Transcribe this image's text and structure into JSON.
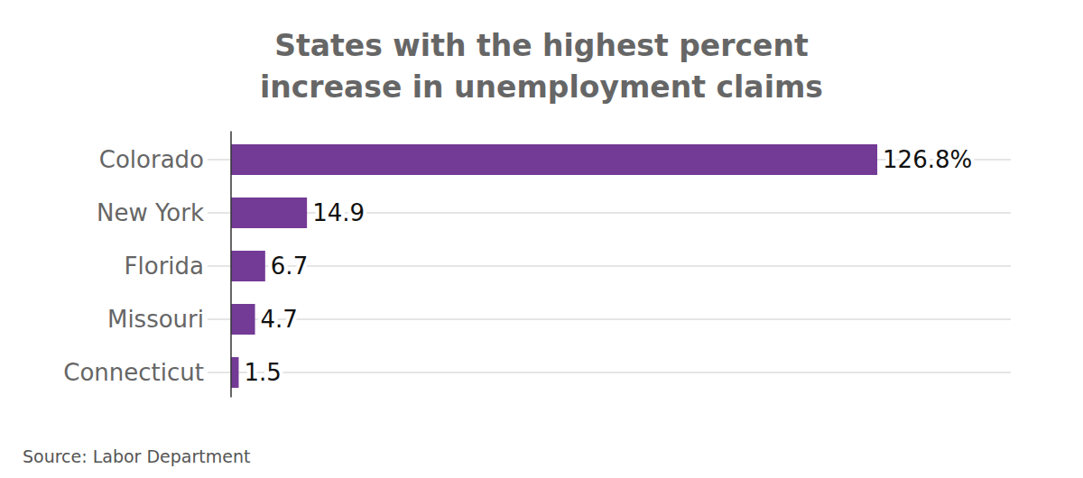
{
  "chart_data": {
    "type": "bar",
    "orientation": "horizontal",
    "title": "States with the highest percent increase in unemployment claims",
    "categories": [
      "Colorado",
      "New York",
      "Florida",
      "Missouri",
      "Connecticut"
    ],
    "values": [
      126.8,
      14.9,
      6.7,
      4.7,
      1.5
    ],
    "value_labels": [
      "126.8%",
      "14.9",
      "6.7",
      "4.7",
      "1.5"
    ],
    "color": "#733a96",
    "xlim": [
      0,
      153
    ],
    "grid": true,
    "data_labels": true,
    "tick_labels": "y",
    "source": "Source: Labor Department"
  }
}
